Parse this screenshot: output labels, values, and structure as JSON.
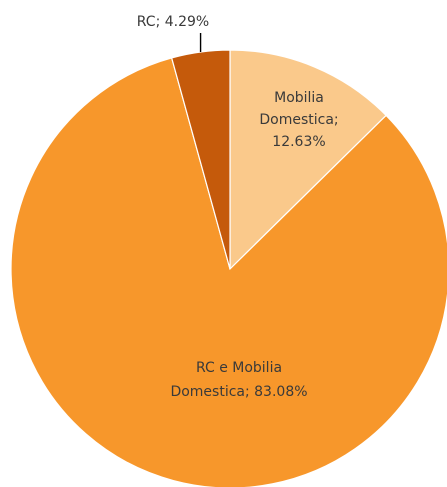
{
  "chart_data": {
    "type": "pie",
    "start_angle_deg": 0,
    "direction": "clockwise",
    "legend": "none",
    "slices": [
      {
        "category": "Mobilia Domestica",
        "value": 12.63,
        "label_lines": [
          "Mobilia",
          "Domestica;",
          "12.63%"
        ],
        "color": "#fac98b"
      },
      {
        "category": "RC e Mobilia Domestica",
        "value": 83.08,
        "label_lines": [
          "RC e Mobilia",
          "Domestica; 83.08%"
        ],
        "color": "#f7972b"
      },
      {
        "category": "RC",
        "value": 4.29,
        "label_lines": [
          "RC; 4.29%"
        ],
        "color": "#c55a0b"
      }
    ]
  }
}
